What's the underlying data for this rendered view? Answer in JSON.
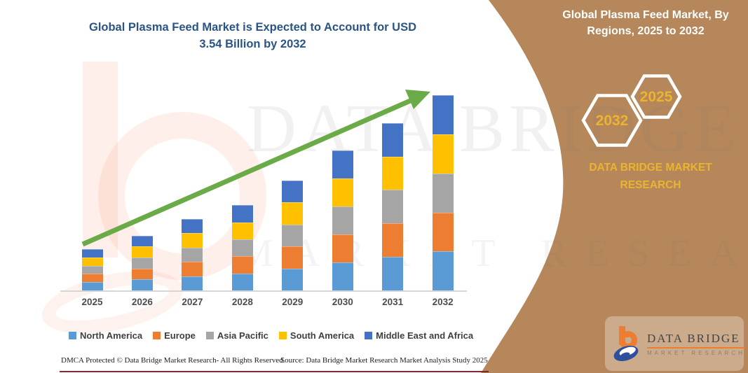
{
  "title": {
    "line1": "Global Plasma Feed Market is Expected to Account for USD",
    "line2": "3.54 Billion by 2032"
  },
  "right_panel": {
    "title_line1": "Global Plasma Feed Market, By",
    "title_line2": "Regions, 2025 to 2032",
    "hexagon_back_year": "2032",
    "hexagon_front_year": "2025",
    "brand_line1": "DATA BRIDGE MARKET",
    "brand_line2": "RESEARCH",
    "panel_color": "#b5875a",
    "gold_color": "#eab42f"
  },
  "logo": {
    "name": "DATA BRIDGE",
    "subtitle": "MARKET RESEARCH"
  },
  "watermark": {
    "text_top": "DATA BRIDGE",
    "text_bottom": "MARKET RESEARCH"
  },
  "footer": {
    "left": "DMCA Protected © Data Bridge Market Research-  All Rights Reserved.",
    "source": "Source: Data Bridge Market Research  Market Analysis Study 2025"
  },
  "chart_data": {
    "type": "bar",
    "stacked": true,
    "title": "Global Plasma Feed Market is Expected to Account for USD 3.54 Billion by 2032",
    "unit": "USD Billion",
    "categories": [
      "2025",
      "2026",
      "2027",
      "2028",
      "2029",
      "2030",
      "2031",
      "2032"
    ],
    "series": [
      {
        "name": "North America",
        "color": "#5B9BD5",
        "values": [
          0.15,
          0.2,
          0.26,
          0.31,
          0.4,
          0.51,
          0.61,
          0.71
        ]
      },
      {
        "name": "Europe",
        "color": "#ED7D31",
        "values": [
          0.15,
          0.2,
          0.26,
          0.31,
          0.4,
          0.51,
          0.61,
          0.71
        ]
      },
      {
        "name": "Asia Pacific",
        "color": "#A5A5A5",
        "values": [
          0.15,
          0.2,
          0.26,
          0.31,
          0.4,
          0.51,
          0.61,
          0.71
        ]
      },
      {
        "name": "South America",
        "color": "#FFC000",
        "values": [
          0.15,
          0.2,
          0.26,
          0.31,
          0.4,
          0.51,
          0.61,
          0.71
        ]
      },
      {
        "name": "Middle East and Africa",
        "color": "#4472C4",
        "values": [
          0.15,
          0.2,
          0.26,
          0.31,
          0.4,
          0.51,
          0.61,
          0.71
        ]
      }
    ],
    "totals_estimated": [
      0.76,
      1.02,
      1.3,
      1.55,
      2.02,
      2.53,
      3.04,
      3.54
    ],
    "ylim": [
      0,
      3.6
    ],
    "grid": false,
    "legend_position": "bottom",
    "trend_arrow": true,
    "arrow_color": "#6aab47",
    "axis_label_color": "#4d4d4d"
  }
}
